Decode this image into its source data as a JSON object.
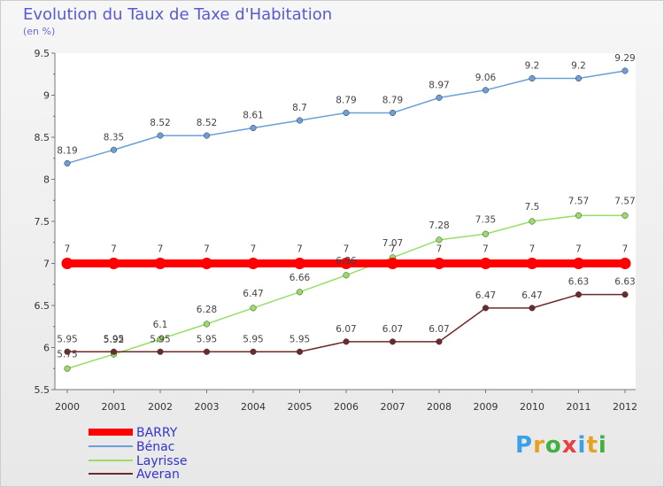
{
  "title": "Evolution du Taux de Taxe d'Habitation",
  "subtitle": "(en %)",
  "logo": "Proxiti",
  "chart_data": {
    "type": "line",
    "title": "Evolution du Taux de Taxe d'Habitation",
    "ylabel": "(en %)",
    "categories": [
      "2000",
      "2001",
      "2002",
      "2003",
      "2004",
      "2005",
      "2006",
      "2007",
      "2008",
      "2009",
      "2010",
      "2011",
      "2012"
    ],
    "ylim": [
      5.5,
      9.5
    ],
    "yticks": [
      "5.5",
      "6",
      "6.5",
      "7",
      "7.5",
      "8",
      "8.5",
      "9",
      "9.5"
    ],
    "grid": false,
    "legend_position": "bottom-left",
    "series": [
      {
        "name": "BARRY",
        "color": "#ff0000",
        "values": [
          7,
          7,
          7,
          7,
          7,
          7,
          7,
          7,
          7,
          7,
          7,
          7,
          7
        ],
        "labels": [
          "7",
          "7",
          "7",
          "7",
          "7",
          "7",
          "7",
          "7",
          "7",
          "7",
          "7",
          "7",
          "7"
        ]
      },
      {
        "name": "Bénac",
        "color": "#6a9fd8",
        "values": [
          8.19,
          8.35,
          8.52,
          8.52,
          8.61,
          8.7,
          8.79,
          8.79,
          8.97,
          9.06,
          9.2,
          9.2,
          9.29
        ],
        "labels": [
          "8.19",
          "8.35",
          "8.52",
          "8.52",
          "8.61",
          "8.7",
          "8.79",
          "8.79",
          "8.97",
          "9.06",
          "9.2",
          "9.2",
          "9.29"
        ]
      },
      {
        "name": "Layrisse",
        "color": "#99dd66",
        "values": [
          5.75,
          5.92,
          6.1,
          6.28,
          6.47,
          6.66,
          6.86,
          7.07,
          7.28,
          7.35,
          7.5,
          7.57,
          7.57
        ],
        "labels": [
          "5.75",
          "5.92",
          "6.1",
          "6.28",
          "6.47",
          "6.66",
          "6.86",
          "7.07",
          "7.28",
          "7.35",
          "7.5",
          "7.57",
          "7.57"
        ]
      },
      {
        "name": "Averan",
        "color": "#6e2a2a",
        "values": [
          5.95,
          5.95,
          5.95,
          5.95,
          5.95,
          5.95,
          6.07,
          6.07,
          6.07,
          6.47,
          6.47,
          6.63,
          6.63
        ],
        "labels": [
          "5.95",
          "5.95",
          "5.95",
          "5.95",
          "5.95",
          "5.95",
          "6.07",
          "6.07",
          "6.07",
          "6.47",
          "6.47",
          "6.63",
          "6.63"
        ]
      }
    ]
  }
}
